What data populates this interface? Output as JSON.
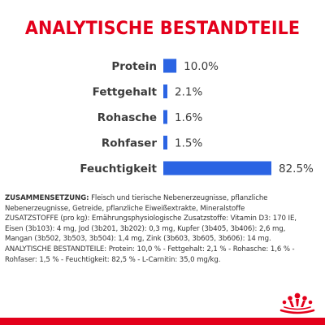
{
  "title": "ANALYTISCHE BESTANDTEILE",
  "colors": {
    "title_red": "#e3001b",
    "bar_blue": "#2b64e3",
    "label_gray": "#3c3c3c",
    "text_gray": "#333333"
  },
  "chart_data": {
    "type": "bar",
    "orientation": "horizontal",
    "categories": [
      "Protein",
      "Fettgehalt",
      "Rohasche",
      "Rohfaser",
      "Feuchtigkeit"
    ],
    "values": [
      10.0,
      2.1,
      1.6,
      1.5,
      82.5
    ],
    "value_labels": [
      "10.0%",
      "2.1%",
      "1.6%",
      "1.5%",
      "82.5%"
    ],
    "unit": "%",
    "xlim": [
      0,
      100
    ],
    "grid": false,
    "legend": "none"
  },
  "composition": {
    "label": "ZUSAMMENSETZUNG:",
    "text": " Fleisch und tierische Nebenerzeugnisse, pflanzliche Nebenerzeugnisse, Getreide, pflanzliche Eiweißextrakte, Mineralstoffe\nZUSATZSTOFFE (pro kg): Ernährungsphysiologische Zusatzstoffe: Vitamin D3: 170 IE, Eisen (3b103): 4 mg, Jod (3b201, 3b202): 0,3 mg, Kupfer (3b405, 3b406): 2,6 mg, Mangan (3b502, 3b503, 3b504): 1,4 mg, Zink (3b603, 3b605, 3b606): 14 mg.\nANALYTISCHE BESTANDTEILE: Protein: 10,0 % - Fettgehalt: 2,1 % - Rohasche: 1,6 % - Rohfaser: 1,5 % - Feuchtigkeit: 82,5 % - L-Carnitin: 35,0 mg/kg."
  },
  "logo_icon": "royal-canin-crown-icon",
  "bottom_bar_icon": "red-bar"
}
